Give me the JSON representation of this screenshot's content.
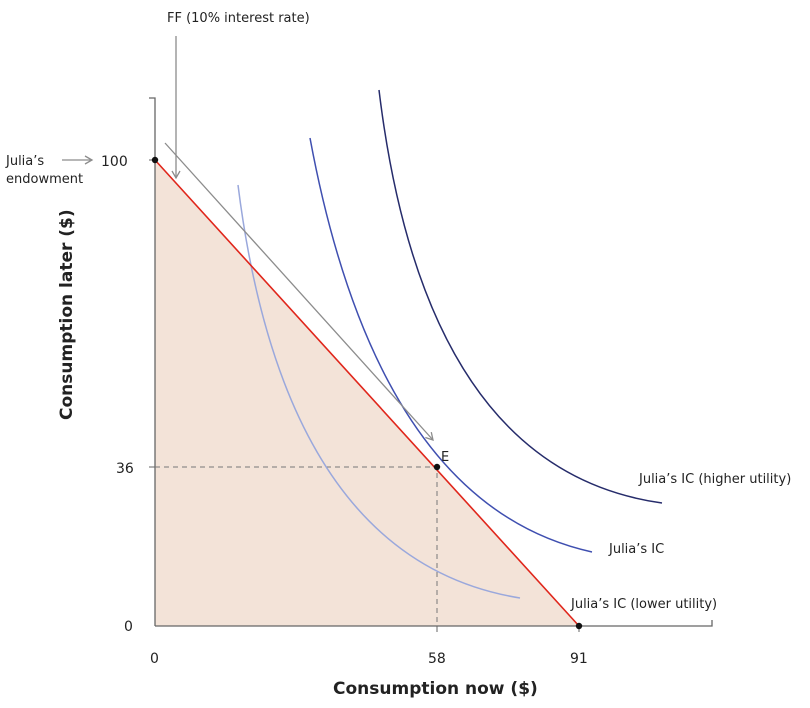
{
  "diagram": {
    "y_axis_label": "Consumption later ($)",
    "x_axis_label": "Consumption now ($)",
    "y_ticks": [
      "0",
      "36",
      "100"
    ],
    "x_ticks": [
      "0",
      "58",
      "91"
    ],
    "ff_label": "FF (10% interest rate)",
    "endowment_label_line1": "Julia’s",
    "endowment_label_line2": "endowment",
    "point_e_label": "E",
    "ic_higher_label": "Julia’s IC (higher utility)",
    "ic_middle_label": "Julia’s IC",
    "ic_lower_label": "Julia’s IC (lower utility)",
    "colors": {
      "budget_line": "#e0261b",
      "feasible_fill": "#f3e3d8",
      "ic_lower": "#9aa8dc",
      "ic_middle": "#3f4fb0",
      "ic_higher": "#262c6b",
      "arrows": "#8c8c8c"
    }
  }
}
